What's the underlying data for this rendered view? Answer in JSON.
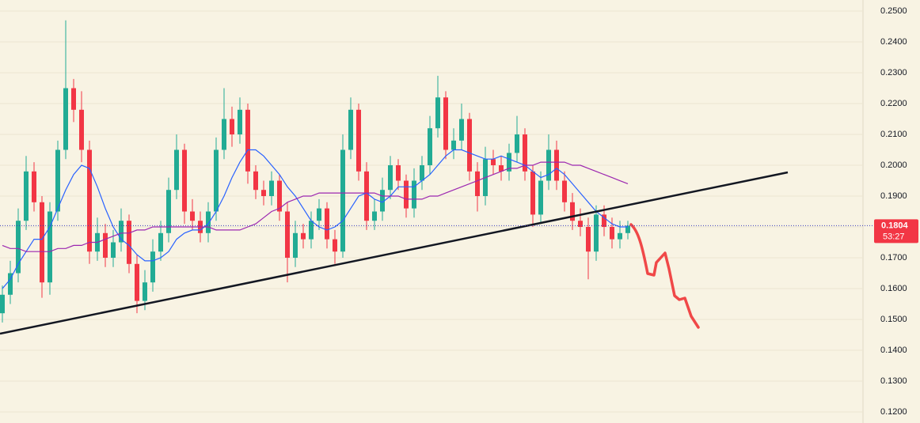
{
  "chart_data": {
    "type": "candlestick",
    "ylim": [
      0.1164,
      0.2536
    ],
    "yticks": [
      {
        "value": 0.12,
        "label": "0.1200"
      },
      {
        "value": 0.13,
        "label": "0.1300"
      },
      {
        "value": 0.14,
        "label": "0.1400"
      },
      {
        "value": 0.15,
        "label": "0.1500"
      },
      {
        "value": 0.16,
        "label": "0.1600"
      },
      {
        "value": 0.17,
        "label": "0.1700"
      },
      {
        "value": 0.18,
        "label": "0.1800"
      },
      {
        "value": 0.19,
        "label": "0.1900"
      },
      {
        "value": 0.2,
        "label": "0.2000"
      },
      {
        "value": 0.21,
        "label": "0.2100"
      },
      {
        "value": 0.22,
        "label": "0.2200"
      },
      {
        "value": 0.23,
        "label": "0.2300"
      },
      {
        "value": 0.24,
        "label": "0.2400"
      },
      {
        "value": 0.25,
        "label": "0.2500"
      }
    ],
    "grid": true,
    "up_color": "#22ab94",
    "down_color": "#f23645",
    "open": [
      0.152,
      0.158,
      0.165,
      0.182,
      0.198,
      0.188,
      0.162,
      0.185,
      0.205,
      0.225,
      0.218,
      0.205,
      0.172,
      0.178,
      0.17,
      0.175,
      0.182,
      0.168,
      0.156,
      0.162,
      0.172,
      0.178,
      0.192,
      0.205,
      0.185,
      0.182,
      0.178,
      0.185,
      0.205,
      0.215,
      0.21,
      0.218,
      0.198,
      0.192,
      0.19,
      0.195,
      0.185,
      0.17,
      0.178,
      0.176,
      0.182,
      0.186,
      0.176,
      0.172,
      0.205,
      0.218,
      0.198,
      0.182,
      0.185,
      0.192,
      0.2,
      0.195,
      0.186,
      0.195,
      0.2,
      0.212,
      0.222,
      0.205,
      0.208,
      0.215,
      0.198,
      0.19,
      0.202,
      0.2,
      0.198,
      0.204,
      0.21,
      0.198,
      0.184,
      0.195,
      0.205,
      0.195,
      0.188,
      0.182,
      0.18,
      0.172,
      0.184,
      0.18,
      0.176,
      0.178
    ],
    "high": [
      0.161,
      0.169,
      0.186,
      0.203,
      0.201,
      0.19,
      0.188,
      0.208,
      0.247,
      0.228,
      0.224,
      0.208,
      0.183,
      0.181,
      0.179,
      0.186,
      0.184,
      0.171,
      0.166,
      0.176,
      0.182,
      0.196,
      0.21,
      0.207,
      0.189,
      0.185,
      0.188,
      0.209,
      0.225,
      0.219,
      0.222,
      0.22,
      0.2,
      0.195,
      0.198,
      0.197,
      0.188,
      0.182,
      0.181,
      0.185,
      0.189,
      0.188,
      0.179,
      0.21,
      0.222,
      0.22,
      0.201,
      0.189,
      0.196,
      0.203,
      0.202,
      0.197,
      0.199,
      0.203,
      0.216,
      0.229,
      0.224,
      0.212,
      0.22,
      0.217,
      0.201,
      0.206,
      0.205,
      0.203,
      0.207,
      0.216,
      0.212,
      0.2,
      0.198,
      0.21,
      0.208,
      0.198,
      0.191,
      0.186,
      0.183,
      0.187,
      0.187,
      0.183,
      0.182,
      0.182
    ],
    "low": [
      0.149,
      0.155,
      0.162,
      0.179,
      0.185,
      0.157,
      0.158,
      0.182,
      0.202,
      0.214,
      0.201,
      0.168,
      0.169,
      0.167,
      0.167,
      0.172,
      0.165,
      0.152,
      0.153,
      0.159,
      0.169,
      0.175,
      0.189,
      0.181,
      0.179,
      0.175,
      0.175,
      0.182,
      0.202,
      0.206,
      0.207,
      0.194,
      0.189,
      0.187,
      0.187,
      0.182,
      0.162,
      0.167,
      0.173,
      0.173,
      0.179,
      0.173,
      0.168,
      0.17,
      0.202,
      0.195,
      0.179,
      0.179,
      0.182,
      0.189,
      0.192,
      0.183,
      0.183,
      0.192,
      0.197,
      0.209,
      0.202,
      0.202,
      0.205,
      0.195,
      0.185,
      0.187,
      0.197,
      0.195,
      0.195,
      0.201,
      0.195,
      0.18,
      0.181,
      0.192,
      0.192,
      0.185,
      0.179,
      0.177,
      0.163,
      0.169,
      0.177,
      0.173,
      0.173,
      0.176
    ],
    "close": [
      0.158,
      0.165,
      0.182,
      0.198,
      0.188,
      0.162,
      0.185,
      0.205,
      0.225,
      0.218,
      0.205,
      0.172,
      0.178,
      0.17,
      0.175,
      0.182,
      0.168,
      0.156,
      0.162,
      0.172,
      0.178,
      0.192,
      0.205,
      0.185,
      0.182,
      0.178,
      0.185,
      0.205,
      0.215,
      0.21,
      0.218,
      0.198,
      0.192,
      0.19,
      0.195,
      0.185,
      0.17,
      0.178,
      0.176,
      0.182,
      0.186,
      0.176,
      0.172,
      0.205,
      0.218,
      0.198,
      0.182,
      0.185,
      0.192,
      0.2,
      0.195,
      0.186,
      0.195,
      0.2,
      0.212,
      0.222,
      0.205,
      0.208,
      0.215,
      0.198,
      0.19,
      0.202,
      0.2,
      0.198,
      0.204,
      0.21,
      0.198,
      0.184,
      0.195,
      0.205,
      0.195,
      0.188,
      0.182,
      0.18,
      0.172,
      0.184,
      0.18,
      0.176,
      0.178,
      0.1804
    ],
    "series": [
      {
        "color": "#2962ff",
        "values": [
          0.16,
          0.163,
          0.168,
          0.172,
          0.176,
          0.176,
          0.18,
          0.186,
          0.192,
          0.197,
          0.2,
          0.199,
          0.193,
          0.186,
          0.18,
          0.176,
          0.174,
          0.171,
          0.169,
          0.169,
          0.17,
          0.172,
          0.176,
          0.178,
          0.179,
          0.179,
          0.181,
          0.185,
          0.19,
          0.196,
          0.201,
          0.205,
          0.205,
          0.203,
          0.2,
          0.197,
          0.193,
          0.19,
          0.186,
          0.182,
          0.18,
          0.179,
          0.18,
          0.182,
          0.186,
          0.19,
          0.191,
          0.189,
          0.188,
          0.19,
          0.193,
          0.193,
          0.193,
          0.195,
          0.197,
          0.2,
          0.203,
          0.205,
          0.205,
          0.204,
          0.203,
          0.202,
          0.202,
          0.203,
          0.202,
          0.201,
          0.2,
          0.198,
          0.196,
          0.197,
          0.199,
          0.197,
          0.194,
          0.191,
          0.188,
          0.185,
          0.183,
          0.181,
          0.18,
          0.18
        ]
      },
      {
        "color": "#9c27b0",
        "values": [
          0.174,
          0.173,
          0.173,
          0.172,
          0.172,
          0.172,
          0.172,
          0.173,
          0.173,
          0.174,
          0.174,
          0.175,
          0.175,
          0.176,
          0.177,
          0.178,
          0.178,
          0.179,
          0.179,
          0.18,
          0.18,
          0.18,
          0.18,
          0.18,
          0.18,
          0.18,
          0.18,
          0.179,
          0.179,
          0.179,
          0.179,
          0.18,
          0.181,
          0.183,
          0.185,
          0.186,
          0.188,
          0.189,
          0.19,
          0.19,
          0.191,
          0.191,
          0.191,
          0.191,
          0.191,
          0.191,
          0.191,
          0.191,
          0.19,
          0.19,
          0.19,
          0.189,
          0.189,
          0.189,
          0.19,
          0.19,
          0.191,
          0.192,
          0.193,
          0.194,
          0.195,
          0.196,
          0.197,
          0.198,
          0.199,
          0.199,
          0.2,
          0.2,
          0.201,
          0.201,
          0.201,
          0.201,
          0.2,
          0.2,
          0.199,
          0.198,
          0.197,
          0.196,
          0.195,
          0.194
        ]
      }
    ],
    "price_label": {
      "value": 0.1804,
      "label": "0.1804"
    },
    "countdown": "53:27"
  }
}
